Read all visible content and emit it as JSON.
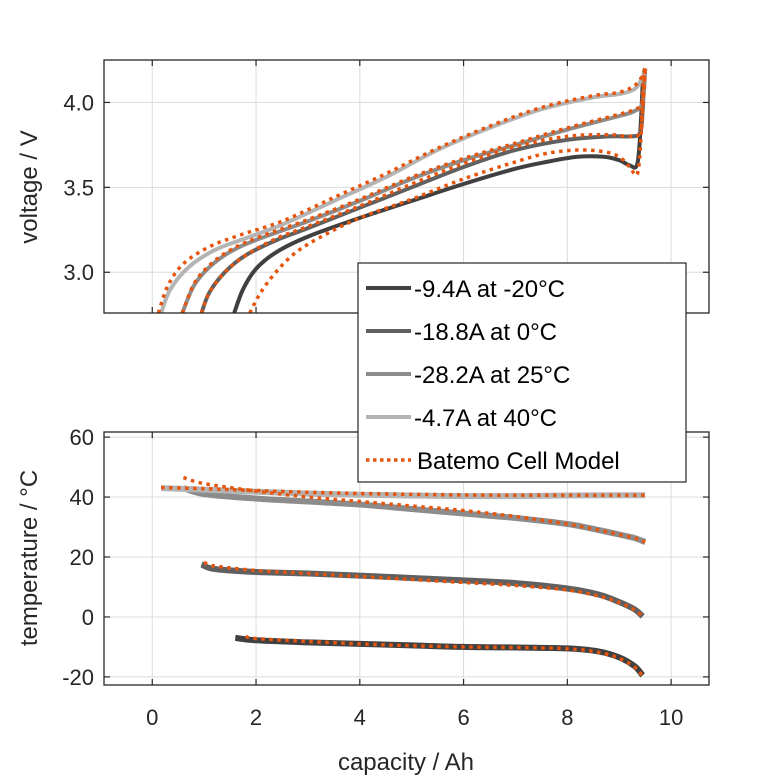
{
  "chart_data": [
    {
      "id": "voltage",
      "type": "line",
      "ylabel": "voltage / V",
      "xlabel": "",
      "xlim": [
        -0.93,
        10.73
      ],
      "ylim": [
        2.76,
        4.25
      ],
      "xticks": [
        0,
        2,
        4,
        6,
        8,
        10
      ],
      "yticks": [
        3.0,
        3.5,
        4.0
      ],
      "ytick_labels": [
        "3.0",
        "3.5",
        "4.0"
      ],
      "grid": true,
      "series": [
        {
          "name": "-9.4A at -20°C",
          "kind": "measured",
          "color": "#404040",
          "x": [
            1.58,
            1.75,
            2.0,
            2.4,
            3.0,
            4.0,
            5.0,
            6.0,
            7.0,
            7.6,
            8.2,
            8.7,
            9.0,
            9.2,
            9.35,
            9.42,
            9.45,
            9.48,
            9.5
          ],
          "y": [
            2.76,
            2.9,
            3.02,
            3.12,
            3.21,
            3.32,
            3.42,
            3.52,
            3.61,
            3.65,
            3.68,
            3.68,
            3.66,
            3.63,
            3.64,
            3.9,
            4.1,
            4.18,
            4.2
          ]
        },
        {
          "name": "-9.4A at -20°C model",
          "kind": "model",
          "color": "#E6550D",
          "x": [
            1.88,
            2.05,
            2.3,
            2.7,
            3.2,
            4.0,
            5.0,
            6.0,
            7.0,
            7.6,
            8.2,
            8.7,
            9.0,
            9.2,
            9.35,
            9.42,
            9.45,
            9.48,
            9.5
          ],
          "y": [
            2.76,
            2.86,
            2.97,
            3.1,
            3.2,
            3.32,
            3.43,
            3.55,
            3.65,
            3.7,
            3.72,
            3.71,
            3.68,
            3.62,
            3.58,
            3.8,
            4.05,
            4.18,
            4.2
          ]
        },
        {
          "name": "-18.8A at 0°C",
          "kind": "measured",
          "color": "#606060",
          "x": [
            0.95,
            1.1,
            1.4,
            1.8,
            2.4,
            3.0,
            4.0,
            5.0,
            6.0,
            7.0,
            8.0,
            8.8,
            9.2,
            9.4,
            9.45,
            9.48,
            9.5
          ],
          "y": [
            2.76,
            2.88,
            3.0,
            3.1,
            3.19,
            3.26,
            3.38,
            3.5,
            3.62,
            3.72,
            3.78,
            3.8,
            3.8,
            3.82,
            3.95,
            4.12,
            4.2
          ]
        },
        {
          "name": "-18.8A at 0°C model",
          "kind": "model",
          "color": "#E6550D",
          "x": [
            0.95,
            1.1,
            1.4,
            1.8,
            2.4,
            3.0,
            4.0,
            5.0,
            6.0,
            7.0,
            8.0,
            8.8,
            9.2,
            9.4,
            9.45,
            9.48,
            9.5
          ],
          "y": [
            2.76,
            2.88,
            3.0,
            3.1,
            3.2,
            3.27,
            3.39,
            3.52,
            3.64,
            3.74,
            3.8,
            3.81,
            3.8,
            3.82,
            3.95,
            4.12,
            4.2
          ]
        },
        {
          "name": "-28.2A at 25°C",
          "kind": "measured",
          "color": "#8C8C8C",
          "x": [
            0.58,
            0.8,
            1.1,
            1.5,
            2.0,
            3.0,
            4.0,
            5.0,
            6.0,
            7.0,
            8.0,
            9.0,
            9.3,
            9.45,
            9.5
          ],
          "y": [
            2.76,
            2.92,
            3.03,
            3.12,
            3.19,
            3.3,
            3.42,
            3.55,
            3.66,
            3.75,
            3.84,
            3.92,
            3.95,
            4.0,
            4.2
          ]
        },
        {
          "name": "-28.2A at 25°C model",
          "kind": "model",
          "color": "#E6550D",
          "x": [
            0.58,
            0.8,
            1.1,
            1.5,
            2.0,
            3.0,
            4.0,
            5.0,
            6.0,
            7.0,
            8.0,
            9.0,
            9.3,
            9.45,
            9.5
          ],
          "y": [
            2.76,
            2.93,
            3.04,
            3.13,
            3.2,
            3.31,
            3.43,
            3.56,
            3.67,
            3.76,
            3.85,
            3.93,
            3.96,
            4.0,
            4.2
          ]
        },
        {
          "name": "-4.7A at 40°C",
          "kind": "measured",
          "color": "#B4B4B4",
          "x": [
            0.17,
            0.35,
            0.7,
            1.2,
            1.8,
            2.5,
            3.5,
            4.5,
            5.5,
            6.5,
            7.5,
            8.5,
            9.0,
            9.3,
            9.45,
            9.5
          ],
          "y": [
            2.76,
            2.9,
            3.03,
            3.13,
            3.2,
            3.28,
            3.42,
            3.56,
            3.72,
            3.85,
            3.96,
            4.03,
            4.05,
            4.08,
            4.15,
            4.2
          ]
        },
        {
          "name": "-4.7A at 40°C model",
          "kind": "model",
          "color": "#E6550D",
          "x": [
            0.12,
            0.3,
            0.6,
            1.1,
            1.7,
            2.5,
            3.5,
            4.5,
            5.5,
            6.5,
            7.5,
            8.5,
            9.0,
            9.3,
            9.45,
            9.5
          ],
          "y": [
            2.76,
            2.92,
            3.05,
            3.15,
            3.22,
            3.3,
            3.44,
            3.58,
            3.73,
            3.86,
            3.97,
            4.04,
            4.06,
            4.1,
            4.16,
            4.2
          ]
        }
      ]
    },
    {
      "id": "temperature",
      "type": "line",
      "ylabel": "temperature / °C",
      "xlabel": "capacity / Ah",
      "xlim": [
        -0.93,
        10.73
      ],
      "ylim": [
        -22.7,
        61.7
      ],
      "xticks": [
        0,
        2,
        4,
        6,
        8,
        10
      ],
      "xtick_labels": [
        "0",
        "2",
        "4",
        "6",
        "8",
        "10"
      ],
      "yticks": [
        -20,
        0,
        20,
        40,
        60
      ],
      "ytick_labels": [
        "-20",
        "0",
        "20",
        "40",
        "60"
      ],
      "grid": true,
      "series": [
        {
          "name": "-9.4A at -20°C",
          "kind": "measured",
          "color": "#404040",
          "x": [
            1.6,
            2.0,
            3.0,
            4.0,
            5.0,
            6.0,
            7.0,
            8.0,
            8.6,
            9.0,
            9.3,
            9.45
          ],
          "y": [
            -7.0,
            -7.8,
            -8.5,
            -9.0,
            -9.5,
            -10.0,
            -10.2,
            -10.5,
            -11.5,
            -13.5,
            -16.5,
            -19.5
          ]
        },
        {
          "name": "-9.4A at -20°C model",
          "kind": "model",
          "color": "#E6550D",
          "x": [
            1.8,
            2.0,
            3.0,
            4.0,
            5.0,
            6.0,
            7.0,
            8.0,
            8.6,
            9.0,
            9.3,
            9.45
          ],
          "y": [
            -6.5,
            -7.2,
            -8.2,
            -9.0,
            -9.6,
            -10.0,
            -10.2,
            -10.6,
            -11.8,
            -13.8,
            -16.8,
            -19.8
          ]
        },
        {
          "name": "-18.8A at 0°C",
          "kind": "measured",
          "color": "#606060",
          "x": [
            0.95,
            1.2,
            2.0,
            3.0,
            4.0,
            5.0,
            6.0,
            7.0,
            8.0,
            8.6,
            9.0,
            9.3,
            9.45
          ],
          "y": [
            17.5,
            16.0,
            15.0,
            14.5,
            13.8,
            13.0,
            12.2,
            11.3,
            9.5,
            7.5,
            5.0,
            2.5,
            0.2
          ]
        },
        {
          "name": "-18.8A at 0°C model",
          "kind": "model",
          "color": "#E6550D",
          "x": [
            1.0,
            1.2,
            2.0,
            3.0,
            4.0,
            5.0,
            6.0,
            7.0,
            8.0,
            8.6,
            9.0,
            9.3,
            9.45
          ],
          "y": [
            18.2,
            17.0,
            15.5,
            14.5,
            13.5,
            12.5,
            11.5,
            10.5,
            9.0,
            7.0,
            4.8,
            2.3,
            0.2
          ]
        },
        {
          "name": "-28.2A at 25°C",
          "kind": "measured",
          "color": "#8C8C8C",
          "x": [
            0.6,
            1.0,
            2.0,
            3.0,
            4.0,
            5.0,
            6.0,
            7.0,
            8.0,
            8.6,
            9.0,
            9.3,
            9.5
          ],
          "y": [
            43.0,
            41.0,
            39.5,
            38.5,
            37.5,
            36.0,
            34.5,
            33.0,
            31.0,
            29.0,
            27.5,
            26.3,
            25.0
          ]
        },
        {
          "name": "-28.2A at 25°C model",
          "kind": "model",
          "color": "#E6550D",
          "x": [
            0.6,
            1.0,
            2.0,
            3.0,
            4.0,
            5.0,
            6.0,
            7.0,
            8.0,
            8.6,
            9.0,
            9.3,
            9.5
          ],
          "y": [
            46.5,
            44.5,
            42.0,
            40.0,
            38.5,
            37.0,
            35.5,
            33.5,
            31.0,
            29.0,
            27.5,
            26.3,
            25.0
          ]
        },
        {
          "name": "-4.7A at 40°C",
          "kind": "measured",
          "color": "#B4B4B4",
          "x": [
            0.17,
            1.0,
            2.0,
            3.0,
            4.0,
            5.0,
            6.0,
            7.0,
            8.0,
            9.0,
            9.5
          ],
          "y": [
            43.0,
            42.5,
            41.8,
            41.2,
            40.8,
            40.5,
            40.3,
            40.3,
            40.5,
            40.6,
            40.6
          ]
        },
        {
          "name": "-4.7A at 40°C model",
          "kind": "model",
          "color": "#E6550D",
          "x": [
            0.17,
            1.0,
            2.0,
            3.0,
            4.0,
            5.0,
            6.0,
            7.0,
            8.0,
            9.0,
            9.5
          ],
          "y": [
            43.2,
            42.8,
            42.2,
            41.6,
            41.2,
            40.9,
            40.7,
            40.6,
            40.6,
            40.6,
            40.6
          ]
        }
      ]
    }
  ],
  "legend": {
    "placement": "center-right",
    "entries": [
      {
        "label": "-9.4A at -20°C",
        "color": "#404040",
        "style": "solid"
      },
      {
        "label": "-18.8A at 0°C",
        "color": "#606060",
        "style": "solid"
      },
      {
        "label": "-28.2A at 25°C",
        "color": "#8C8C8C",
        "style": "solid"
      },
      {
        "label": "-4.7A at 40°C",
        "color": "#B4B4B4",
        "style": "solid"
      },
      {
        "label": "Batemo Cell Model",
        "color": "#E6550D",
        "style": "dotted"
      }
    ]
  }
}
